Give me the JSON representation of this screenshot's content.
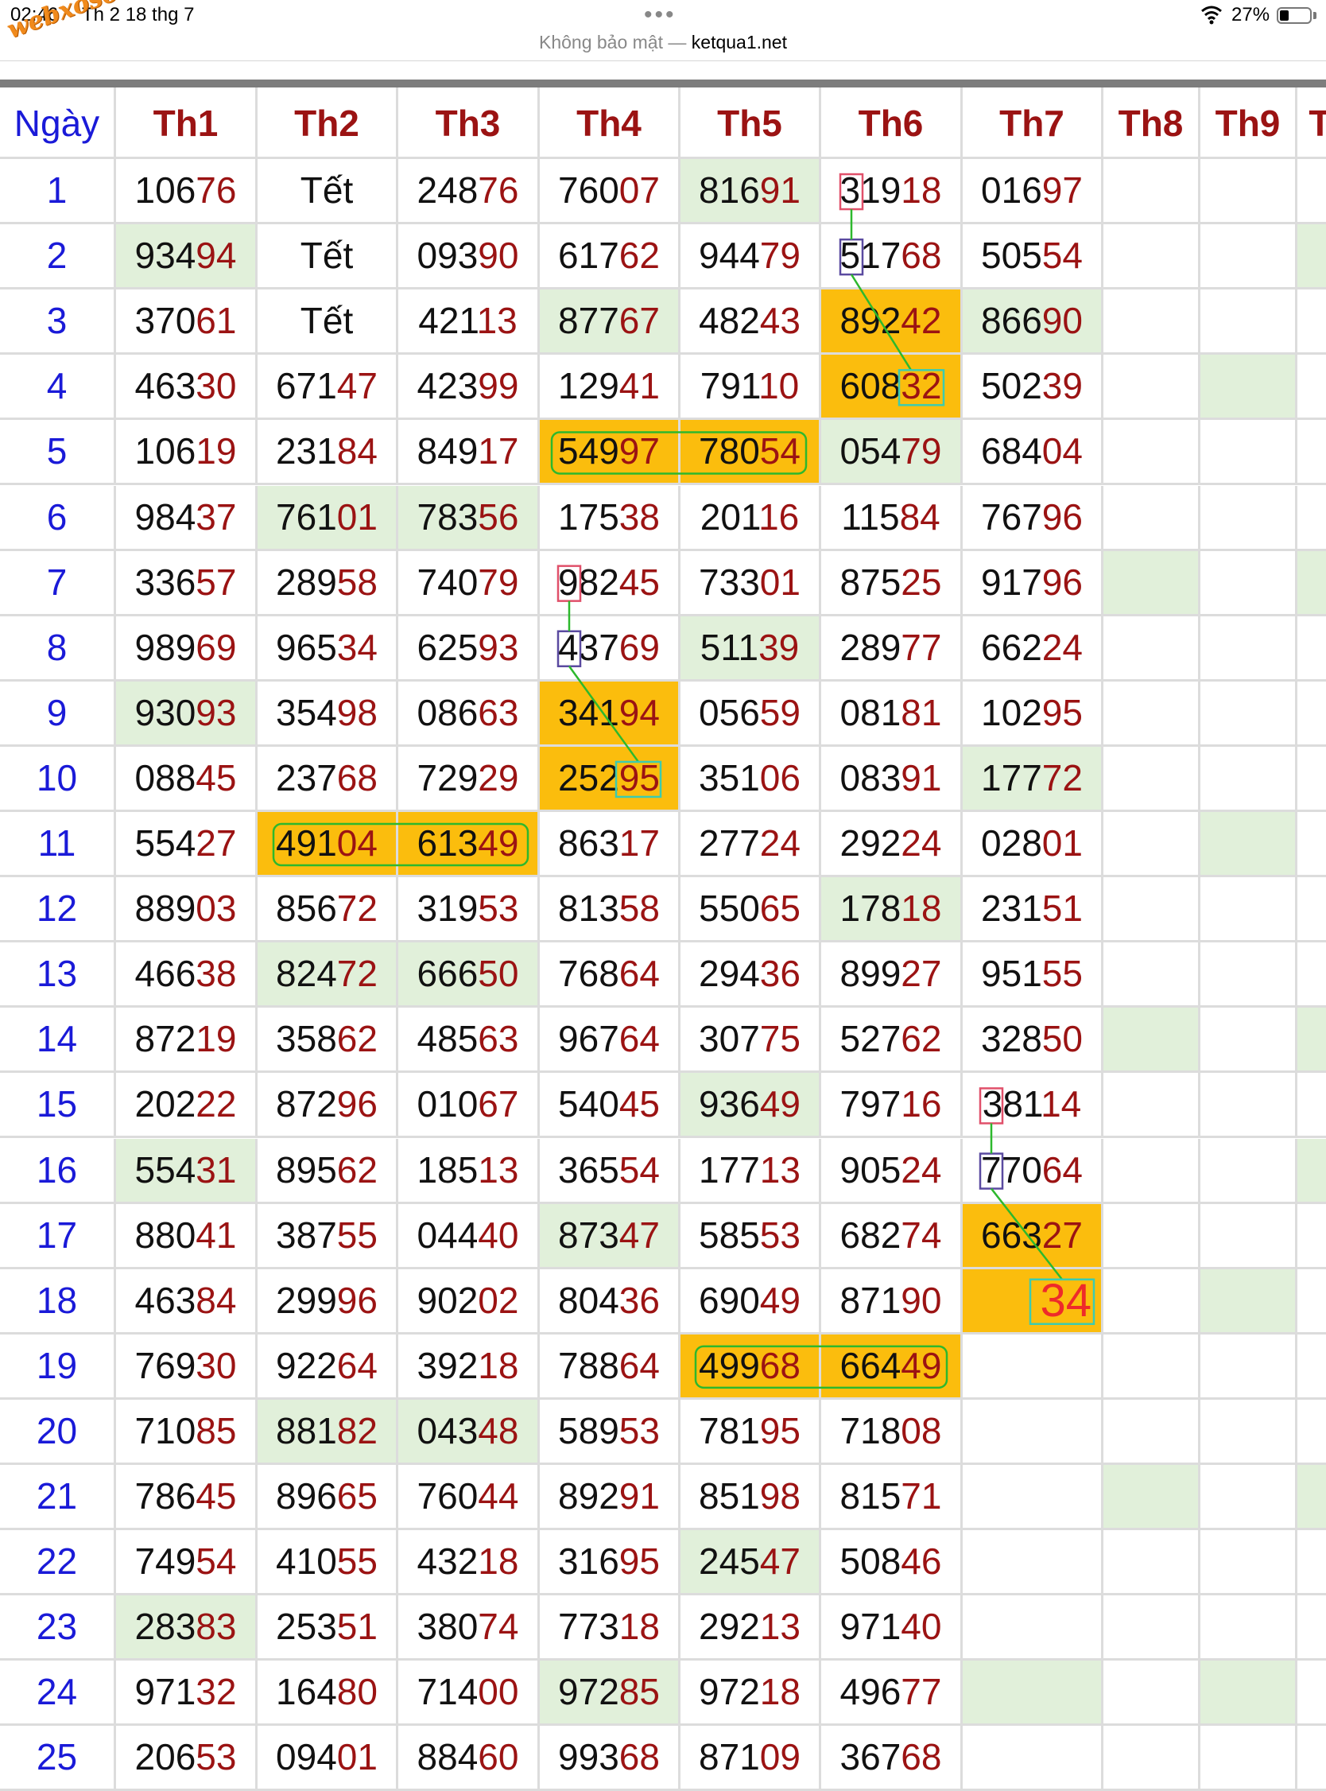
{
  "status": {
    "time": "02:46",
    "date": "Th 2 18 thg 7",
    "battery": "27%"
  },
  "browser": {
    "not_secure": "Không bảo mật —",
    "host": "ketqua1.net"
  },
  "watermark": "webxoso.net",
  "headers": [
    "Ngày",
    "Th1",
    "Th2",
    "Th3",
    "Th4",
    "Th5",
    "Th6",
    "Th7",
    "Th8",
    "Th9",
    "Th"
  ],
  "rows": [
    {
      "day": "1",
      "cells": [
        "10676",
        "Tết",
        "24876",
        "76007",
        "81691",
        "31918",
        "01697",
        "",
        ""
      ]
    },
    {
      "day": "2",
      "cells": [
        "93494",
        "Tết",
        "09390",
        "61762",
        "94479",
        "51768",
        "50554",
        "",
        ""
      ]
    },
    {
      "day": "3",
      "cells": [
        "37061",
        "Tết",
        "42113",
        "87767",
        "48243",
        "89242",
        "86690",
        "",
        ""
      ]
    },
    {
      "day": "4",
      "cells": [
        "46330",
        "67147",
        "42399",
        "12941",
        "79110",
        "60832",
        "50239",
        "",
        ""
      ]
    },
    {
      "day": "5",
      "cells": [
        "10619",
        "23184",
        "84917",
        "54997",
        "78054",
        "05479",
        "68404",
        "",
        ""
      ]
    },
    {
      "day": "6",
      "cells": [
        "98437",
        "76101",
        "78356",
        "17538",
        "20116",
        "11584",
        "76796",
        "",
        ""
      ]
    },
    {
      "day": "7",
      "cells": [
        "33657",
        "28958",
        "74079",
        "98245",
        "73301",
        "87525",
        "91796",
        "",
        ""
      ]
    },
    {
      "day": "8",
      "cells": [
        "98969",
        "96534",
        "62593",
        "43769",
        "51139",
        "28977",
        "66224",
        "",
        ""
      ]
    },
    {
      "day": "9",
      "cells": [
        "93093",
        "35498",
        "08663",
        "34194",
        "05659",
        "08181",
        "10295",
        "",
        ""
      ]
    },
    {
      "day": "10",
      "cells": [
        "08845",
        "23768",
        "72929",
        "25295",
        "35106",
        "08391",
        "17772",
        "",
        ""
      ]
    },
    {
      "day": "11",
      "cells": [
        "55427",
        "49104",
        "61349",
        "86317",
        "27724",
        "29224",
        "02801",
        "",
        ""
      ]
    },
    {
      "day": "12",
      "cells": [
        "88903",
        "85672",
        "31953",
        "81358",
        "55065",
        "17818",
        "23151",
        "",
        ""
      ]
    },
    {
      "day": "13",
      "cells": [
        "46638",
        "82472",
        "66650",
        "76864",
        "29436",
        "89927",
        "95155",
        "",
        ""
      ]
    },
    {
      "day": "14",
      "cells": [
        "87219",
        "35862",
        "48563",
        "96764",
        "30775",
        "52762",
        "32850",
        "",
        ""
      ]
    },
    {
      "day": "15",
      "cells": [
        "20222",
        "87296",
        "01067",
        "54045",
        "93649",
        "79716",
        "38114",
        "",
        ""
      ]
    },
    {
      "day": "16",
      "cells": [
        "55431",
        "89562",
        "18513",
        "36554",
        "17713",
        "90524",
        "77064",
        "",
        ""
      ]
    },
    {
      "day": "17",
      "cells": [
        "88041",
        "38755",
        "04440",
        "87347",
        "58553",
        "68274",
        "66327",
        "",
        ""
      ]
    },
    {
      "day": "18",
      "cells": [
        "46384",
        "29996",
        "90202",
        "80436",
        "69049",
        "87190",
        "34",
        "",
        ""
      ]
    },
    {
      "day": "19",
      "cells": [
        "76930",
        "92264",
        "39218",
        "78864",
        "49968",
        "66449",
        "",
        "",
        ""
      ]
    },
    {
      "day": "20",
      "cells": [
        "71085",
        "88182",
        "04348",
        "58953",
        "78195",
        "71808",
        "",
        "",
        ""
      ]
    },
    {
      "day": "21",
      "cells": [
        "78645",
        "89665",
        "76044",
        "89291",
        "85198",
        "81571",
        "",
        "",
        ""
      ]
    },
    {
      "day": "22",
      "cells": [
        "74954",
        "41055",
        "43218",
        "31695",
        "24547",
        "50846",
        "",
        "",
        ""
      ]
    },
    {
      "day": "23",
      "cells": [
        "28383",
        "25351",
        "38074",
        "77318",
        "29213",
        "97140",
        "",
        "",
        ""
      ]
    },
    {
      "day": "24",
      "cells": [
        "97132",
        "16480",
        "71400",
        "97285",
        "97218",
        "49677",
        "",
        "",
        ""
      ]
    },
    {
      "day": "25",
      "cells": [
        "20653",
        "09401",
        "88460",
        "99368",
        "87109",
        "36768",
        "",
        "",
        ""
      ]
    }
  ],
  "highlight_colors": {
    "green": "#e1f0da",
    "orange": "#fbbd0d",
    "red_mark": "#e0506a",
    "purple_mark": "#5a4aa0",
    "teal_mark": "#3ccbb0",
    "link_line": "#2db82d"
  }
}
